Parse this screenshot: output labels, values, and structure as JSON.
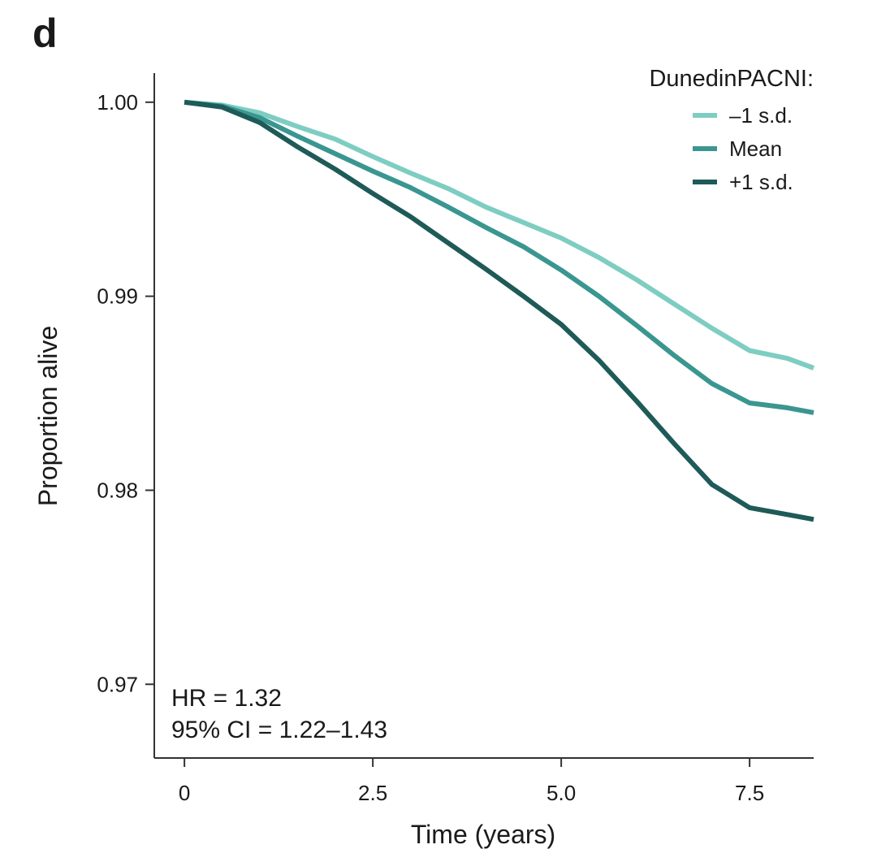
{
  "panel_label": "d",
  "chart_data": {
    "type": "line",
    "xlabel": "Time (years)",
    "ylabel": "Proportion alive",
    "xlim": [
      -0.4,
      8.35
    ],
    "ylim": [
      0.9662,
      1.0015
    ],
    "x_ticks": [
      0,
      2.5,
      5.0,
      7.5
    ],
    "x_tick_labels": [
      "0",
      "2.5",
      "5.0",
      "7.5"
    ],
    "y_ticks": [
      1.0,
      0.99,
      0.98,
      0.97
    ],
    "y_tick_labels": [
      "1.00",
      "0.99",
      "0.98",
      "0.97"
    ],
    "grid": false,
    "legend": {
      "title": "DunedinPACNI:",
      "position": "top-right"
    },
    "series": [
      {
        "name": "–1 s.d.",
        "color": "#7ecdc2",
        "x": [
          0,
          0.5,
          1.0,
          1.5,
          2.0,
          2.5,
          3.0,
          3.5,
          4.0,
          4.5,
          5.0,
          5.5,
          6.0,
          6.5,
          7.0,
          7.5,
          8.0,
          8.35
        ],
        "y": [
          1.0,
          0.99985,
          0.99945,
          0.99875,
          0.9981,
          0.9972,
          0.99635,
          0.99555,
          0.9946,
          0.9938,
          0.993,
          0.992,
          0.99085,
          0.9896,
          0.98835,
          0.9872,
          0.9868,
          0.9863
        ]
      },
      {
        "name": "Mean",
        "color": "#3a9690",
        "x": [
          0,
          0.5,
          1.0,
          1.5,
          2.0,
          2.5,
          3.0,
          3.5,
          4.0,
          4.5,
          5.0,
          5.5,
          6.0,
          6.5,
          7.0,
          7.5,
          8.0,
          8.35
        ],
        "y": [
          1.0,
          0.9998,
          0.9992,
          0.99825,
          0.99735,
          0.99645,
          0.9956,
          0.9946,
          0.99355,
          0.99255,
          0.99135,
          0.99,
          0.9885,
          0.98695,
          0.9855,
          0.9845,
          0.98425,
          0.984
        ]
      },
      {
        "name": "+1 s.d.",
        "color": "#1e5a58",
        "x": [
          0,
          0.5,
          1.0,
          1.5,
          2.0,
          2.5,
          3.0,
          3.5,
          4.0,
          4.5,
          5.0,
          5.5,
          6.0,
          6.5,
          7.0,
          7.5,
          8.0,
          8.35
        ],
        "y": [
          1.0,
          0.99975,
          0.99895,
          0.9977,
          0.99655,
          0.9953,
          0.9941,
          0.99275,
          0.9914,
          0.99,
          0.98855,
          0.9867,
          0.9846,
          0.9824,
          0.9803,
          0.9791,
          0.97875,
          0.9785
        ]
      }
    ],
    "annotations": [
      "HR = 1.32",
      "95% CI = 1.22–1.43"
    ]
  }
}
